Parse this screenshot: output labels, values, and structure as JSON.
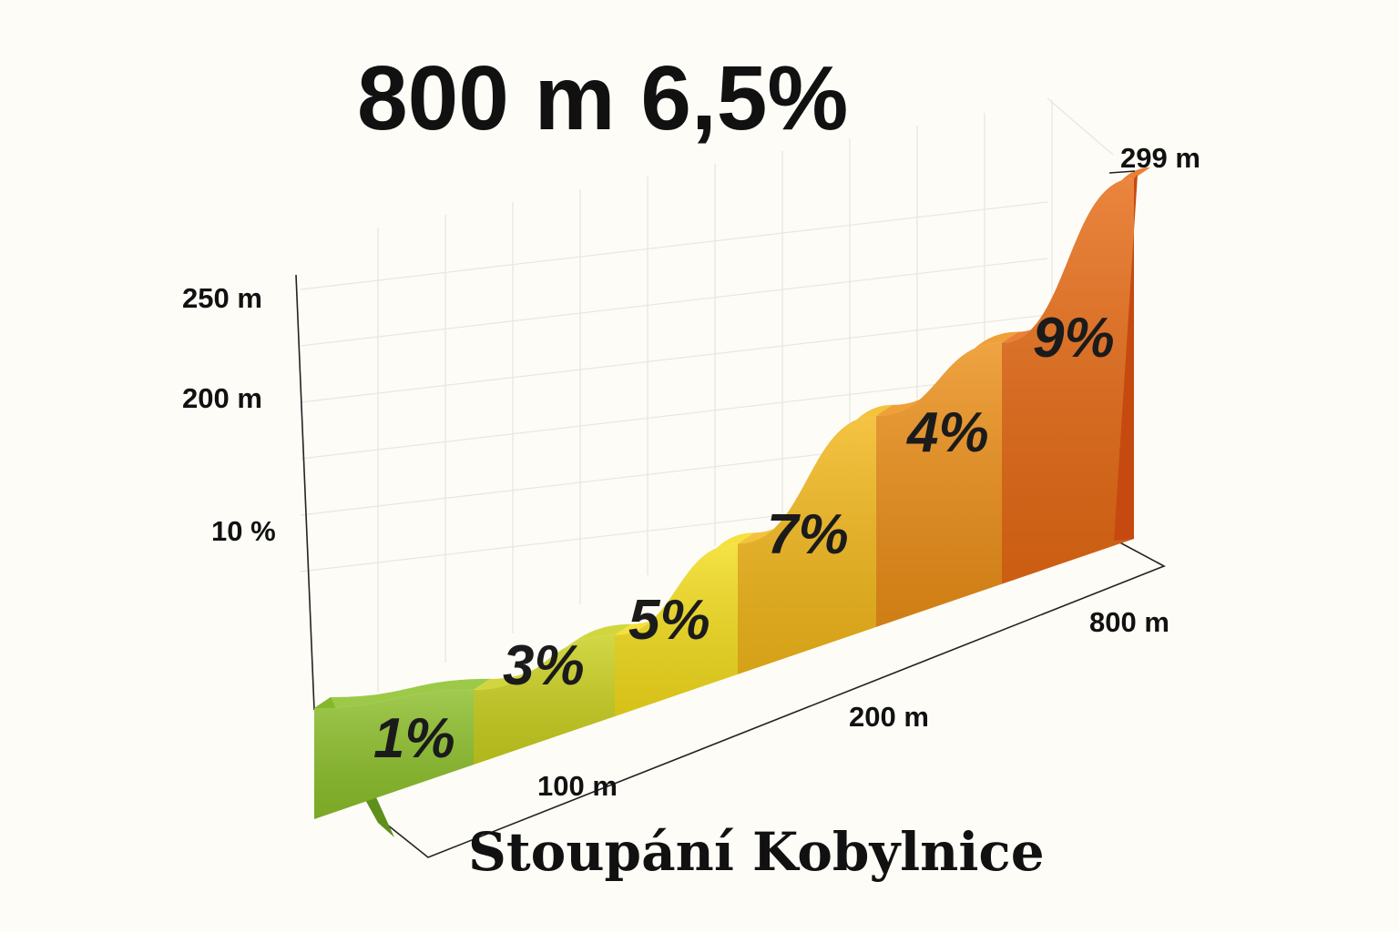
{
  "headline": "800 m 6,5%",
  "title": "Stoupání Kobylnice",
  "summary_stats": {
    "length": "800 m",
    "avg_gradient": "6,5%"
  },
  "chart_data": {
    "type": "area",
    "title": "Stoupání Kobylnice",
    "y_tick_labels": [
      "250 m",
      "200 m",
      "10 %"
    ],
    "x_tick_labels": [
      "100 m",
      "200 m",
      "800 m"
    ],
    "end_label": "299 m",
    "segments": [
      {
        "label": "1%",
        "gradient": 1,
        "color": "#8cbf2a"
      },
      {
        "label": "3%",
        "gradient": 3,
        "color": "#c9cf1e"
      },
      {
        "label": "5%",
        "gradient": 5,
        "color": "#f3dc1c"
      },
      {
        "label": "7%",
        "gradient": 7,
        "color": "#f2b71a"
      },
      {
        "label": "4%",
        "gradient": 4,
        "color": "#ec8f18"
      },
      {
        "label": "9%",
        "gradient": 9,
        "color": "#e66a14"
      }
    ],
    "grid": true
  }
}
